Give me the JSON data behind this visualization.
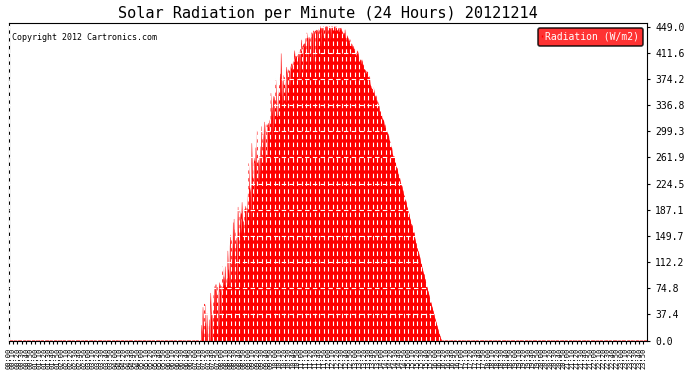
{
  "title": "Solar Radiation per Minute (24 Hours) 20121214",
  "copyright_text": "Copyright 2012 Cartronics.com",
  "legend_label": "Radiation (W/m2)",
  "background_color": "#ffffff",
  "plot_bg_color": "#ffffff",
  "fill_color": "#ff0000",
  "line_color": "#ff0000",
  "grid_color": "#aaaaaa",
  "dashed_zero_color": "#ff0000",
  "title_fontsize": 11,
  "ytick_values": [
    0.0,
    37.4,
    74.8,
    112.2,
    149.7,
    187.1,
    224.5,
    261.9,
    299.3,
    336.8,
    374.2,
    411.6,
    449.0
  ],
  "ymax": 449.0,
  "ymin": 0.0,
  "num_minutes": 1440,
  "sunrise_minute": 435,
  "sunset_minute": 975,
  "peak_minute": 720,
  "peak_value": 449.0
}
